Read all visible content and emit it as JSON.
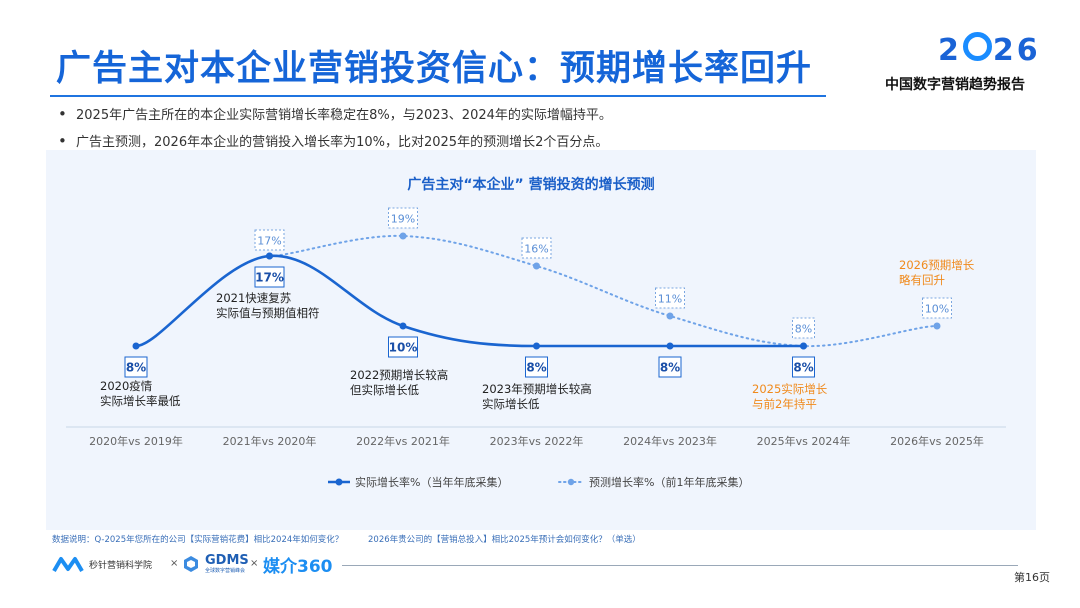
{
  "header": {
    "title": "广告主对本企业营销投资信心：预期增长率回升",
    "logo_year_left": "2",
    "logo_year_right": "26",
    "logo_subtitle": "中国数字营销趋势报告"
  },
  "bullets": [
    "2025年广告主所在的本企业实际营销增长率稳定在8%，与2023、2024年的实际增幅持平。",
    "广告主预测，2026年本企业的营销投入增长率为10%，比对2025年的预测增长2个百分点。"
  ],
  "chart_data": {
    "type": "line",
    "title": "广告主对“本企业” 营销投资的增长预测",
    "categories": [
      "2020年vs 2019年",
      "2021年vs 2020年",
      "2022年vs 2021年",
      "2023年vs 2022年",
      "2024年vs 2023年",
      "2025年vs 2024年",
      "2026年vs 2025年"
    ],
    "series": [
      {
        "name": "实际增长率%（当年年底采集）",
        "style": "solid",
        "color": "#1a65d0",
        "values": [
          8,
          17,
          10,
          8,
          8,
          8,
          null
        ],
        "labels": [
          "8%",
          "17%",
          "10%",
          "8%",
          "8%",
          "8%",
          null
        ]
      },
      {
        "name": "预测增长率%（前1年年底采集）",
        "style": "dotted",
        "color": "#6fa3e8",
        "values": [
          null,
          17,
          19,
          16,
          11,
          8,
          10
        ],
        "labels": [
          null,
          "17%",
          "19%",
          "16%",
          "11%",
          "8%",
          "10%"
        ]
      }
    ],
    "annotations": [
      {
        "category": "2020年vs 2019年",
        "lines": [
          "2020疫情",
          "实际增长率最低"
        ],
        "color": "#222222"
      },
      {
        "category": "2021年vs 2020年",
        "lines": [
          "2021快速复苏",
          "实际值与预期值相符"
        ],
        "color": "#222222"
      },
      {
        "category": "2022年vs 2021年",
        "lines": [
          "2022预期增长较高",
          "但实际增长低"
        ],
        "color": "#222222"
      },
      {
        "category": "2023年vs 2022年",
        "lines": [
          "2023年预期增长较高",
          "实际增长低"
        ],
        "color": "#222222"
      },
      {
        "category": "2025年vs 2024年",
        "lines": [
          "2025实际增长",
          "与前2年持平"
        ],
        "color": "#f08a1c"
      },
      {
        "category": "2026年vs 2025年",
        "lines": [
          "2026预期增长",
          "略有回升"
        ],
        "color": "#f08a1c"
      }
    ],
    "legend_position": "bottom",
    "grid": false
  },
  "footer": {
    "note_left": "数据说明：Q-2025年您所在的公司【实际营销花费】相比2024年如何变化？",
    "note_right": "2026年贵公司的【营销总投入】相比2025年预计会如何变化？（单选）",
    "page_number": "第16页",
    "brand1": "秒针营销科学院",
    "brand2": "GDMS",
    "brand2_sub": "全球数字营销峰会",
    "brand3": "媒介360",
    "separator": "×"
  }
}
